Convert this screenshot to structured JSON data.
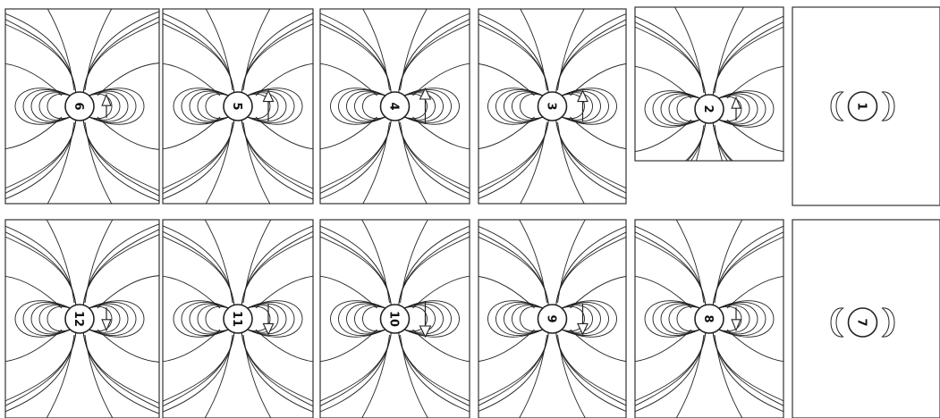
{
  "panels": [
    {
      "label": "6",
      "arrow": "up",
      "strength": 0.45,
      "field_lines": true
    },
    {
      "label": "5",
      "arrow": "up",
      "strength": 0.8,
      "field_lines": true
    },
    {
      "label": "4",
      "arrow": "up",
      "strength": 1.0,
      "field_lines": true
    },
    {
      "label": "3",
      "arrow": "up",
      "strength": 0.8,
      "field_lines": true
    },
    {
      "label": "2",
      "arrow": "up",
      "strength": 0.45,
      "field_lines": true
    },
    {
      "label": "1",
      "arrow": "none",
      "strength": 0,
      "field_lines": false
    },
    {
      "label": "12",
      "arrow": "down",
      "strength": 0.45,
      "field_lines": true
    },
    {
      "label": "11",
      "arrow": "down",
      "strength": 0.8,
      "field_lines": true
    },
    {
      "label": "10",
      "arrow": "down",
      "strength": 1.0,
      "field_lines": true
    },
    {
      "label": "9",
      "arrow": "down",
      "strength": 0.8,
      "field_lines": true
    },
    {
      "label": "8",
      "arrow": "down",
      "strength": 0.45,
      "field_lines": true
    },
    {
      "label": "7",
      "arrow": "none",
      "strength": 0,
      "field_lines": false
    }
  ],
  "colors": {
    "line": "#222222",
    "frame": "#333333",
    "background": "#ffffff"
  }
}
